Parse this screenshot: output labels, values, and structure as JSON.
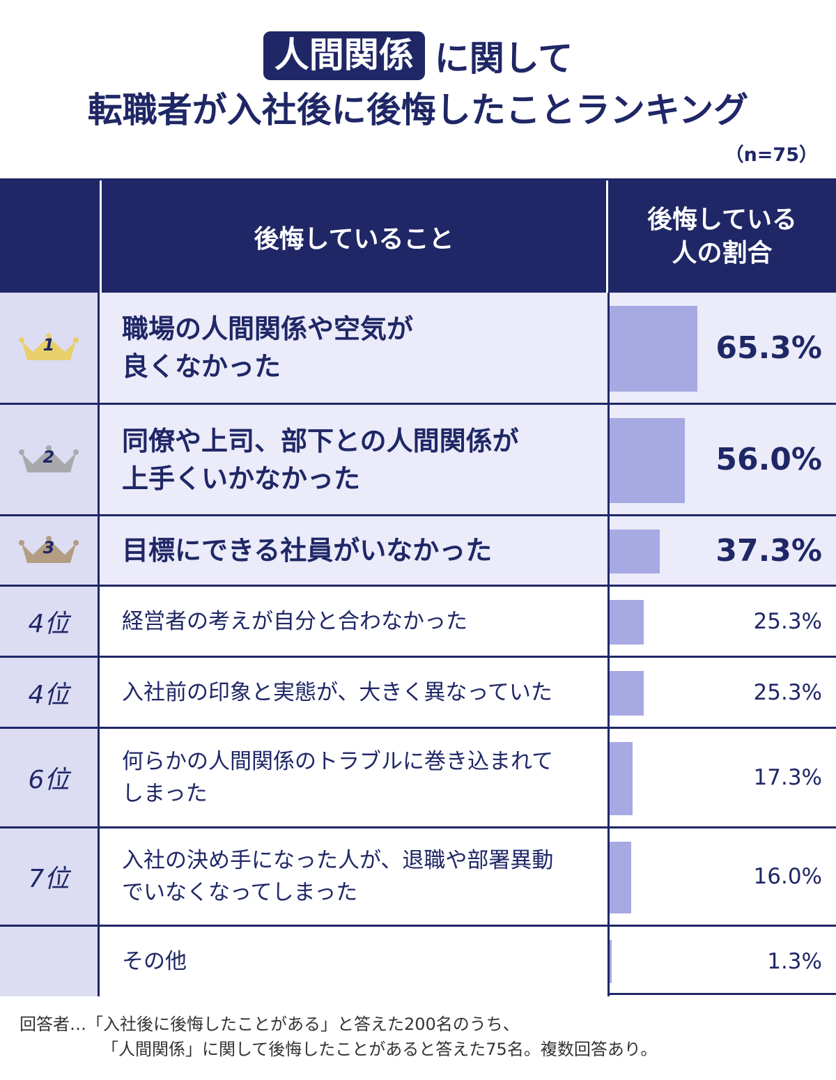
{
  "title": {
    "badge": "人間関係",
    "line1_rest": "に関して",
    "line2": "転職者が入社後に後悔したことランキング",
    "sample": "（n=75）"
  },
  "table": {
    "header_item": "後悔していること",
    "header_pct": "後悔している\n人の割合"
  },
  "colors": {
    "navy": "#1f2766",
    "bar": "#a6a9e2",
    "rank_bg": "#dcdcf3",
    "top_row_bg": "#ebebf9",
    "crown_gold": "#e8cf6a",
    "crown_silver": "#a9a9ad",
    "crown_bronze": "#b39d83"
  },
  "rows": [
    {
      "rank": "1",
      "crown": "gold",
      "label": "職場の人間関係や空気が\n良くなかった",
      "value": 65.3,
      "pct": "65.3%"
    },
    {
      "rank": "2",
      "crown": "silver",
      "label": "同僚や上司、部下との人間関係が\n上手くいかなかった",
      "value": 56.0,
      "pct": "56.0%"
    },
    {
      "rank": "3",
      "crown": "bronze",
      "label": "目標にできる社員がいなかった",
      "value": 37.3,
      "pct": "37.3%"
    },
    {
      "rank": "4位",
      "label": "経営者の考えが自分と合わなかった",
      "value": 25.3,
      "pct": "25.3%"
    },
    {
      "rank": "4位",
      "label": "入社前の印象と実態が、大きく異なっていた",
      "value": 25.3,
      "pct": "25.3%"
    },
    {
      "rank": "6位",
      "label": "何らかの人間関係のトラブルに巻き込まれて\nしまった",
      "value": 17.3,
      "pct": "17.3%"
    },
    {
      "rank": "7位",
      "label": "入社の決め手になった人が、退職や部署異動\nでいなくなってしまった",
      "value": 16.0,
      "pct": "16.0%"
    },
    {
      "rank": "",
      "label": "その他",
      "value": 1.3,
      "pct": "1.3%"
    }
  ],
  "chart_data": {
    "type": "bar",
    "categories": [
      "職場の人間関係や空気が良くなかった",
      "同僚や上司、部下との人間関係が上手くいかなかった",
      "目標にできる社員がいなかった",
      "経営者の考えが自分と合わなかった",
      "入社前の印象と実態が、大きく異なっていた",
      "何らかの人間関係のトラブルに巻き込まれてしまった",
      "入社の決め手になった人が、退職や部署異動でいなくなってしまった",
      "その他"
    ],
    "values": [
      65.3,
      56.0,
      37.3,
      25.3,
      25.3,
      17.3,
      16.0,
      1.3
    ],
    "title": "人間関係に関して転職者が入社後に後悔したことランキング",
    "xlabel": "",
    "ylabel": "後悔している人の割合",
    "ylim": [
      0,
      100
    ]
  },
  "footnote": {
    "line1": "回答者…「入社後に後悔したことがある」と答えた200名のうち、",
    "line2": "「人間関係」に関して後悔したことがあると答えた75名。複数回答あり。"
  }
}
